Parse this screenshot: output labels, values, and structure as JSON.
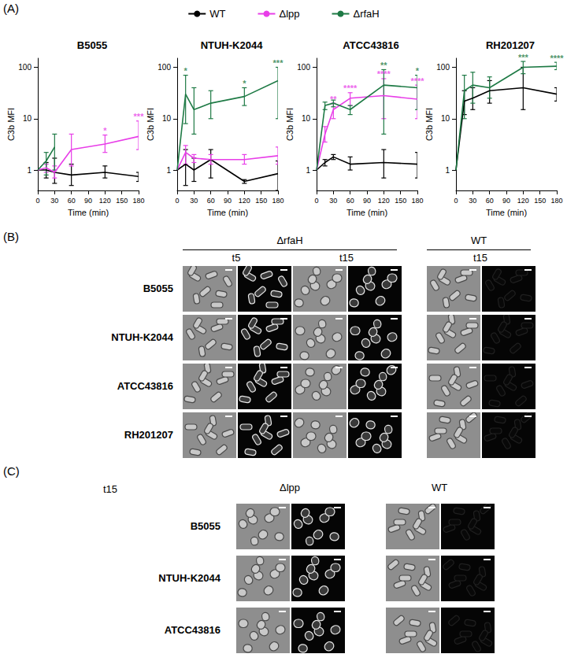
{
  "chart_data": [
    {
      "type": "line",
      "title": "B5055",
      "xlabel": "Time (min)",
      "ylabel": "C3b MFI",
      "log": "y",
      "legend": "top",
      "marker": "none",
      "xlim": [
        0,
        180
      ],
      "xticks": [
        0,
        30,
        60,
        90,
        120,
        150,
        180
      ],
      "ylim": [
        0.4,
        150
      ],
      "yticks": [
        1,
        10,
        100
      ],
      "x": [
        0,
        15,
        30,
        60,
        120,
        180
      ],
      "series": [
        {
          "name": "WT",
          "color": "#000000",
          "values": [
            1,
            1,
            0.9,
            0.8,
            0.9,
            0.75
          ],
          "error_low": [
            null,
            0.7,
            0.55,
            0.5,
            0.7,
            0.6
          ],
          "error_high": [
            null,
            1.4,
            1.7,
            1.3,
            1.2,
            0.9
          ],
          "significance": [
            null,
            null,
            null,
            null,
            null,
            null
          ]
        },
        {
          "name": "Δlpp",
          "color": "#e83ee8",
          "values": [
            1,
            1.1,
            0.9,
            2.5,
            3.2,
            4.5
          ],
          "error_low": [
            null,
            0.9,
            0.7,
            1.2,
            2.2,
            2.5
          ],
          "error_high": [
            null,
            1.3,
            1.2,
            5,
            4.8,
            9
          ],
          "significance": [
            null,
            null,
            null,
            null,
            "*",
            "***"
          ]
        },
        {
          "name": "ΔrfaH",
          "color": "#1e7a45",
          "values": [
            1,
            1.5,
            2.8,
            null,
            null,
            null
          ],
          "error_low": [
            null,
            0.8,
            1,
            null,
            null,
            null
          ],
          "error_high": [
            null,
            2.2,
            5,
            null,
            null,
            null
          ],
          "significance": [
            null,
            null,
            null,
            null,
            null,
            null
          ]
        }
      ]
    },
    {
      "type": "line",
      "title": "NTUH-K2044",
      "xlabel": "Time (min)",
      "ylabel": "C3b MFI",
      "log": "y",
      "legend": "top",
      "marker": "none",
      "xlim": [
        0,
        180
      ],
      "xticks": [
        0,
        30,
        60,
        90,
        120,
        150,
        180
      ],
      "ylim": [
        0.4,
        150
      ],
      "yticks": [
        1,
        10,
        100
      ],
      "x": [
        0,
        15,
        30,
        60,
        120,
        180
      ],
      "series": [
        {
          "name": "WT",
          "color": "#000000",
          "values": [
            1,
            1.3,
            1,
            1.6,
            0.6,
            0.85
          ],
          "error_low": [
            null,
            0.5,
            0.6,
            0.7,
            0.55,
            0.4
          ],
          "error_high": [
            null,
            2.5,
            1.7,
            2.5,
            0.65,
            1.5
          ],
          "significance": [
            null,
            null,
            null,
            null,
            null,
            null
          ]
        },
        {
          "name": "Δlpp",
          "color": "#e83ee8",
          "values": [
            1,
            2.2,
            1.7,
            1.6,
            1.6,
            1.9
          ],
          "error_low": [
            null,
            1.3,
            1.4,
            1.3,
            1.3,
            1.3
          ],
          "error_high": [
            null,
            3,
            2,
            2,
            2,
            2.8
          ],
          "significance": [
            null,
            null,
            null,
            null,
            null,
            null
          ]
        },
        {
          "name": "ΔrfaH",
          "color": "#1e7a45",
          "values": [
            1,
            30,
            15,
            20,
            27,
            55
          ],
          "error_low": [
            null,
            8,
            5,
            10,
            18,
            10
          ],
          "error_high": [
            null,
            70,
            40,
            35,
            40,
            100
          ],
          "significance": [
            null,
            "*",
            null,
            null,
            "*",
            "***"
          ]
        }
      ]
    },
    {
      "type": "line",
      "title": "ATCC43816",
      "xlabel": "Time (min)",
      "ylabel": "C3b MFI",
      "log": "y",
      "legend": "top",
      "marker": "none",
      "xlim": [
        0,
        180
      ],
      "xticks": [
        0,
        30,
        60,
        90,
        120,
        150,
        180
      ],
      "ylim": [
        0.4,
        150
      ],
      "yticks": [
        1,
        10,
        100
      ],
      "x": [
        0,
        15,
        30,
        60,
        120,
        180
      ],
      "series": [
        {
          "name": "WT",
          "color": "#000000",
          "values": [
            1,
            1.4,
            1.8,
            1.3,
            1.4,
            1.3
          ],
          "error_low": [
            null,
            1.2,
            1.6,
            1,
            0.7,
            0.7
          ],
          "error_high": [
            null,
            1.6,
            2,
            1.8,
            2.5,
            2.2
          ],
          "significance": [
            null,
            null,
            null,
            null,
            null,
            null
          ]
        },
        {
          "name": "Δlpp",
          "color": "#e83ee8",
          "values": [
            1,
            5,
            15,
            25,
            28,
            24
          ],
          "error_low": [
            null,
            3.5,
            10,
            18,
            10,
            10
          ],
          "error_high": [
            null,
            7,
            20,
            32,
            60,
            45
          ],
          "significance": [
            null,
            null,
            "**",
            "****",
            "****",
            "****"
          ]
        },
        {
          "name": "ΔrfaH",
          "color": "#1e7a45",
          "values": [
            1,
            18,
            20,
            15,
            45,
            40
          ],
          "error_low": [
            null,
            15,
            17,
            12,
            5,
            15
          ],
          "error_high": [
            null,
            21,
            23,
            18,
            90,
            70
          ],
          "significance": [
            null,
            null,
            null,
            null,
            "**",
            "*"
          ]
        }
      ]
    },
    {
      "type": "line",
      "title": "RH201207",
      "xlabel": "Time (min)",
      "ylabel": "C3b MFI",
      "log": "y",
      "legend": "top",
      "marker": "none",
      "xlim": [
        0,
        180
      ],
      "xticks": [
        0,
        30,
        60,
        90,
        120,
        150,
        180
      ],
      "ylim": [
        0.4,
        150
      ],
      "yticks": [
        1,
        10,
        100
      ],
      "x": [
        0,
        15,
        30,
        60,
        120,
        180
      ],
      "series": [
        {
          "name": "WT",
          "color": "#000000",
          "values": [
            1,
            22,
            25,
            35,
            40,
            30
          ],
          "error_low": [
            null,
            12,
            15,
            20,
            15,
            22
          ],
          "error_high": [
            null,
            35,
            40,
            55,
            100,
            40
          ],
          "significance": [
            null,
            null,
            null,
            null,
            null,
            null
          ]
        },
        {
          "name": "ΔrfaH",
          "color": "#1e7a45",
          "values": [
            1,
            35,
            45,
            40,
            100,
            105
          ],
          "error_low": [
            null,
            10,
            20,
            25,
            75,
            90
          ],
          "error_high": [
            null,
            70,
            80,
            65,
            130,
            125
          ],
          "significance": [
            null,
            null,
            null,
            null,
            "***",
            "****"
          ]
        }
      ]
    }
  ],
  "panel_a": {
    "label": "(A)"
  },
  "panel_b": {
    "label": "(B)",
    "strains": [
      "B5055",
      "NTUH-K2044",
      "ATCC43816",
      "RH201207"
    ],
    "groups": [
      {
        "name": "ΔrfaH",
        "times": [
          "t5",
          "t15"
        ]
      },
      {
        "name": "WT",
        "times": [
          "t15"
        ]
      }
    ]
  },
  "panel_c": {
    "label": "(C)",
    "time": "t15",
    "strains": [
      "B5055",
      "NTUH-K2044",
      "ATCC43816"
    ],
    "groups": [
      "Δlpp",
      "WT"
    ]
  }
}
